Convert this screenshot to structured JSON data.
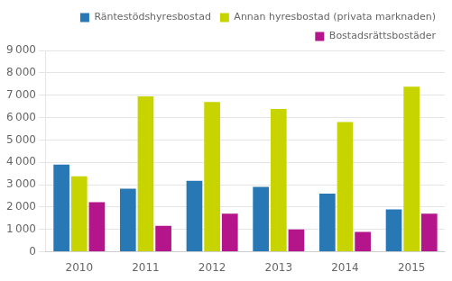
{
  "chart_data": {
    "type": "bar",
    "categories": [
      "2010",
      "2011",
      "2012",
      "2013",
      "2014",
      "2015"
    ],
    "series": [
      {
        "name": "Räntestödshyresbostad",
        "color": "#2878b5",
        "values": [
          3900,
          2820,
          3170,
          2900,
          2600,
          1900
        ]
      },
      {
        "name": "Annan hyresbostad (privata marknaden)",
        "color": "#c8d400",
        "values": [
          3380,
          6950,
          6700,
          6380,
          5800,
          7380
        ]
      },
      {
        "name": "Bostadsrättsbostäder",
        "color": "#b5158a",
        "values": [
          2220,
          1160,
          1700,
          1000,
          890,
          1700
        ]
      }
    ],
    "ylim": [
      0,
      9000
    ],
    "yticks": [
      0,
      {
        "value": 1000,
        "label": "1 000"
      },
      {
        "value": 2000,
        "label": "2 000"
      },
      {
        "value": 3000,
        "label": "3 000"
      },
      {
        "value": 4000,
        "label": "4 000"
      },
      {
        "value": 5000,
        "label": "5 000"
      },
      {
        "value": 6000,
        "label": "6 000"
      },
      {
        "value": 7000,
        "label": "7 000"
      },
      {
        "value": 8000,
        "label": "8 000"
      },
      {
        "value": 9000,
        "label": "9 000"
      }
    ],
    "grid": true,
    "legend": "upper right"
  }
}
